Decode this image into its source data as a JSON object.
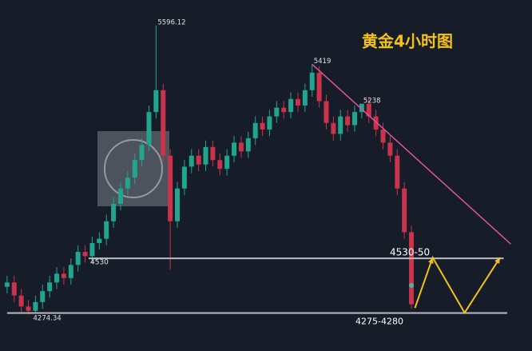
{
  "chart_data": {
    "type": "candlestick",
    "title": "黄金4小时图",
    "xlim": [
      -1,
      74
    ],
    "ylim": [
      4106,
      5713
    ],
    "up_color": "#22a58f",
    "down_color": "#c9334b",
    "open": [
      4400,
      4420,
      4360,
      4310,
      4290,
      4330,
      4380,
      4420,
      4460,
      4440,
      4500,
      4560,
      4540,
      4600,
      4620,
      4700,
      4780,
      4850,
      4900,
      4980,
      5050,
      5200,
      5300,
      5000,
      4700,
      4850,
      4950,
      5000,
      4960,
      5040,
      4980,
      4940,
      5000,
      5060,
      5020,
      5080,
      5150,
      5120,
      5180,
      5220,
      5200,
      5260,
      5230,
      5300,
      5380,
      5250,
      5150,
      5100,
      5180,
      5140,
      5200,
      5238,
      5180,
      5120,
      5060,
      5000,
      4850,
      4650
    ],
    "high": [
      4450,
      4450,
      4390,
      4340,
      4360,
      4410,
      4450,
      4490,
      4490,
      4530,
      4590,
      4590,
      4630,
      4650,
      4730,
      4810,
      4880,
      4930,
      5010,
      5080,
      5230,
      5596.12,
      5330,
      5030,
      4880,
      4980,
      5030,
      5030,
      5070,
      5070,
      5010,
      5030,
      5090,
      5090,
      5110,
      5180,
      5180,
      5210,
      5250,
      5250,
      5290,
      5290,
      5330,
      5419,
      5410,
      5280,
      5180,
      5210,
      5210,
      5230,
      5238,
      5268,
      5210,
      5150,
      5090,
      5030,
      4880,
      4680
    ],
    "low": [
      4370,
      4330,
      4280,
      4274.34,
      4280,
      4300,
      4350,
      4390,
      4410,
      4410,
      4470,
      4510,
      4510,
      4570,
      4590,
      4670,
      4750,
      4820,
      4870,
      4950,
      5020,
      5170,
      4970,
      4480,
      4670,
      4820,
      4920,
      4930,
      4930,
      4950,
      4910,
      4910,
      4970,
      4990,
      4990,
      5050,
      5090,
      5090,
      5150,
      5170,
      5170,
      5200,
      5200,
      5270,
      5220,
      5120,
      5070,
      5070,
      5110,
      5110,
      5170,
      5150,
      5090,
      5030,
      4970,
      4820,
      4620,
      4300
    ],
    "close": [
      4420,
      4360,
      4310,
      4290,
      4330,
      4380,
      4420,
      4460,
      4440,
      4500,
      4560,
      4540,
      4600,
      4620,
      4700,
      4780,
      4850,
      4900,
      4980,
      5050,
      5200,
      5300,
      5000,
      4700,
      4850,
      4950,
      5000,
      4960,
      5040,
      4980,
      4940,
      5000,
      5060,
      5020,
      5080,
      5150,
      5120,
      5180,
      5220,
      5200,
      5260,
      5230,
      5300,
      5380,
      5250,
      5150,
      5100,
      5180,
      5140,
      5200,
      5238,
      5180,
      5120,
      5060,
      5000,
      4850,
      4650,
      4320
    ],
    "price_labels": [
      {
        "text": "5596.12",
        "x": 21,
        "value": 5596.12
      },
      {
        "text": "5419",
        "x": 43,
        "value": 5419
      },
      {
        "text": "5238",
        "x": 50,
        "value": 5238
      },
      {
        "text": "4274.34",
        "x": 3,
        "value": 4274.34
      }
    ],
    "levels": [
      {
        "label": "4530",
        "value": 4530,
        "from": 11.5,
        "to": 70
      },
      {
        "label": "4275-4280",
        "value": 4280,
        "from": 0,
        "to": 70.5
      }
    ],
    "trendline": {
      "x": [
        43,
        71
      ],
      "values": [
        5419,
        4596
      ],
      "color": "#e0559a"
    },
    "projection": {
      "label": "4530-50",
      "x": [
        57.5,
        60,
        64.5,
        69.5
      ],
      "values": [
        4303,
        4534,
        4281,
        4534
      ],
      "color": "#f2c21b"
    }
  }
}
